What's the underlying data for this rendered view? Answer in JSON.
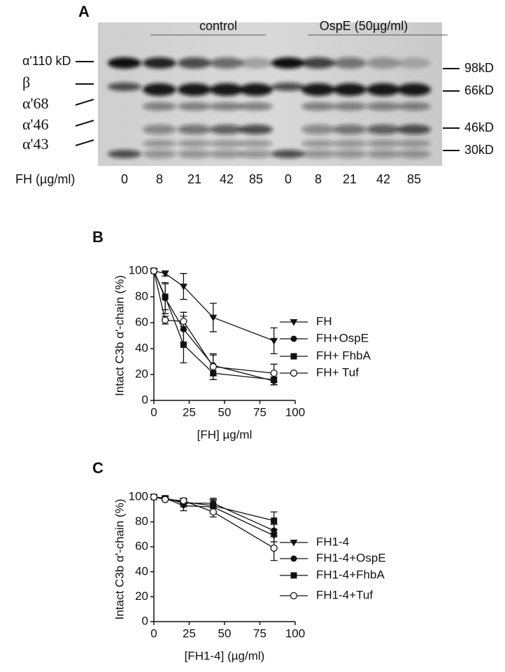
{
  "gel": {
    "panel": "A",
    "groups": [
      "control",
      "OspE (50µg/ml)"
    ],
    "left_labels": [
      "α'110 kD",
      "β",
      "α'68",
      "α'46",
      "α'43"
    ],
    "right_labels": [
      "98kD",
      "66kD",
      "46kD",
      "30kD"
    ],
    "lane_axis_label": "FH (µg/ml)",
    "lanes": [
      0,
      8,
      21,
      42,
      85,
      0,
      8,
      21,
      42,
      85
    ]
  },
  "chart_data": [
    {
      "type": "line",
      "panel": "B",
      "x_label": "[FH] µg/ml",
      "y_label": "Intact C3b α'-chain (%)",
      "x": [
        0,
        8,
        21,
        42,
        85
      ],
      "xlim": [
        0,
        100
      ],
      "xticks": [
        0,
        25,
        50,
        75,
        100
      ],
      "ylim": [
        0,
        100
      ],
      "yticks": [
        0,
        20,
        40,
        60,
        80,
        100
      ],
      "series": [
        {
          "name": "FH",
          "color": "#111111",
          "marker": "triangle-down",
          "values": [
            100,
            98,
            88,
            64,
            46
          ],
          "errors": [
            0,
            2,
            10,
            11,
            10
          ]
        },
        {
          "name": "FH+OspE",
          "color": "#111111",
          "marker": "circle",
          "values": [
            100,
            79,
            55,
            27,
            15
          ],
          "errors": [
            0,
            12,
            10,
            8,
            3
          ]
        },
        {
          "name": "FH+ FhbA",
          "color": "#111111",
          "marker": "square",
          "values": [
            100,
            80,
            43,
            21,
            16
          ],
          "errors": [
            0,
            10,
            14,
            5,
            4
          ]
        },
        {
          "name": "FH+ Tuf",
          "color": "#111111",
          "marker": "circle-open",
          "values": [
            100,
            62,
            61,
            26,
            21
          ],
          "errors": [
            0,
            3,
            7,
            10,
            7
          ]
        }
      ]
    },
    {
      "type": "line",
      "panel": "C",
      "x_label": "[FH1-4] (µg/ml)",
      "y_label": "Intact C3b α'-chain (%)",
      "x": [
        0,
        8,
        21,
        42,
        85
      ],
      "xlim": [
        0,
        100
      ],
      "xticks": [
        0,
        25,
        50,
        75,
        100
      ],
      "ylim": [
        0,
        100
      ],
      "yticks": [
        0,
        20,
        40,
        60,
        80,
        100
      ],
      "series": [
        {
          "name": "FH1-4",
          "color": "#111111",
          "marker": "triangle-down",
          "values": [
            100,
            99,
            93,
            92,
            69
          ],
          "errors": [
            0,
            1,
            4,
            5,
            5
          ]
        },
        {
          "name": "FH1-4+OspE",
          "color": "#111111",
          "marker": "circle",
          "values": [
            100,
            99,
            95,
            95,
            73
          ],
          "errors": [
            0,
            1,
            3,
            4,
            5
          ]
        },
        {
          "name": "FH1-4+FhbA",
          "color": "#111111",
          "marker": "square",
          "values": [
            100,
            99,
            96,
            93,
            81
          ],
          "errors": [
            0,
            1,
            3,
            5,
            7
          ]
        },
        {
          "name": "FH1-4+Tuf",
          "color": "#111111",
          "marker": "circle-open",
          "values": [
            100,
            98,
            97,
            88,
            59
          ],
          "errors": [
            0,
            1,
            2,
            4,
            10
          ]
        }
      ]
    }
  ]
}
